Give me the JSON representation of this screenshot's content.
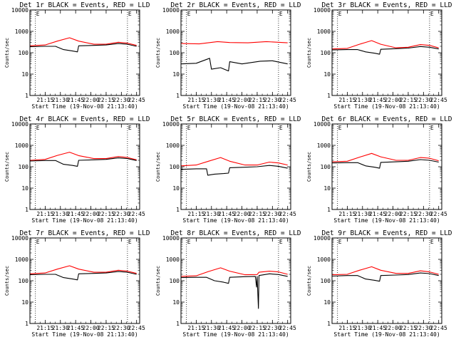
{
  "chart_data": [
    {
      "type": "line",
      "title": "Det 1r BLACK = Events, RED = LLD",
      "xlabel": "Start Time (19-Nov-08 21:13:40)",
      "ylabel": "Counts/sec",
      "x_tick_labels": [
        "21:15",
        "21:30",
        "21:45",
        "22:00",
        "22:15",
        "22:30",
        "22:45"
      ],
      "y_tick_labels": [
        "1",
        "10",
        "100",
        "1000",
        "10000"
      ],
      "x_unit": "minutes",
      "xlim": [
        21.0,
        22.8
      ],
      "ylim": [
        1,
        10000
      ],
      "yscale": "log",
      "markers": [
        {
          "label": "E",
          "x": 21.09
        },
        {
          "label": "E",
          "x": 22.6
        }
      ],
      "series": [
        {
          "color": "#ff0000",
          "x": [
            21.0,
            21.25,
            21.45,
            21.65,
            21.8,
            22.05,
            22.25,
            22.45,
            22.6,
            22.75
          ],
          "y": [
            210,
            230,
            350,
            500,
            350,
            250,
            250,
            310,
            280,
            220
          ]
        },
        {
          "color": "#000000",
          "x": [
            21.0,
            21.25,
            21.42,
            21.55,
            21.7,
            21.78,
            21.8,
            22.05,
            22.25,
            22.45,
            22.6,
            22.75
          ],
          "y": [
            190,
            200,
            200,
            140,
            120,
            110,
            210,
            220,
            230,
            270,
            250,
            200
          ]
        }
      ]
    },
    {
      "type": "line",
      "title": "Det 2r BLACK = Events, RED = LLD",
      "xlabel": "",
      "ylabel": "Counts/sec",
      "x_tick_labels": [
        "21:15",
        "21:30",
        "21:45",
        "22:00",
        "22:15",
        "22:30",
        "22:45"
      ],
      "y_tick_labels": [
        "1",
        "10",
        "100",
        "1000",
        "10000"
      ],
      "x_unit": "minutes",
      "xlim": [
        21.0,
        22.8
      ],
      "ylim": [
        1,
        10000
      ],
      "yscale": "log",
      "markers": [
        {
          "label": "E",
          "x": 21.09
        },
        {
          "label": "E",
          "x": 22.6
        }
      ],
      "series": [
        {
          "color": "#ff0000",
          "x": [
            21.0,
            21.3,
            21.6,
            21.8,
            22.1,
            22.4,
            22.75
          ],
          "y": [
            270,
            260,
            330,
            300,
            290,
            330,
            290
          ]
        },
        {
          "color": "#000000",
          "x": [
            21.0,
            21.25,
            21.47,
            21.5,
            21.65,
            21.78,
            21.8,
            22.0,
            22.3,
            22.5,
            22.75
          ],
          "y": [
            30,
            32,
            55,
            17,
            20,
            14,
            38,
            30,
            40,
            42,
            30
          ]
        }
      ]
    },
    {
      "type": "line",
      "title": "Det 3r BLACK = Events, RED = LLD",
      "xlabel": "",
      "ylabel": "Counts/sec",
      "x_tick_labels": [
        "21:15",
        "21:30",
        "21:45",
        "22:00",
        "22:15",
        "22:30",
        "22:45"
      ],
      "y_tick_labels": [
        "1",
        "10",
        "100",
        "1000",
        "10000"
      ],
      "x_unit": "minutes",
      "xlim": [
        21.0,
        22.8
      ],
      "ylim": [
        1,
        10000
      ],
      "yscale": "log",
      "markers": [
        {
          "label": "E",
          "x": 21.09
        },
        {
          "label": "E",
          "x": 22.6
        }
      ],
      "series": [
        {
          "color": "#ff0000",
          "x": [
            21.0,
            21.25,
            21.45,
            21.65,
            21.8,
            22.05,
            22.25,
            22.45,
            22.6,
            22.75
          ],
          "y": [
            150,
            160,
            250,
            370,
            250,
            170,
            180,
            240,
            220,
            170
          ]
        },
        {
          "color": "#000000",
          "x": [
            21.0,
            21.25,
            21.42,
            21.55,
            21.7,
            21.78,
            21.8,
            22.05,
            22.25,
            22.45,
            22.6,
            22.75
          ],
          "y": [
            135,
            140,
            140,
            110,
            95,
            85,
            145,
            155,
            165,
            195,
            180,
            150
          ]
        }
      ]
    },
    {
      "type": "line",
      "title": "Det 4r BLACK = Events, RED = LLD",
      "xlabel": "",
      "ylabel": "Counts/sec",
      "x_tick_labels": [
        "21:15",
        "21:30",
        "21:45",
        "22:00",
        "22:15",
        "22:30",
        "22:45"
      ],
      "y_tick_labels": [
        "1",
        "10",
        "100",
        "1000",
        "10000"
      ],
      "x_unit": "minutes",
      "xlim": [
        21.0,
        22.8
      ],
      "ylim": [
        1,
        10000
      ],
      "yscale": "log",
      "markers": [
        {
          "label": "E",
          "x": 21.09
        },
        {
          "label": "E",
          "x": 22.6
        }
      ],
      "series": [
        {
          "color": "#ff0000",
          "x": [
            21.0,
            21.25,
            21.45,
            21.65,
            21.8,
            22.05,
            22.25,
            22.45,
            22.6,
            22.75
          ],
          "y": [
            200,
            220,
            340,
            480,
            330,
            240,
            240,
            300,
            270,
            210
          ]
        },
        {
          "color": "#000000",
          "x": [
            21.0,
            21.25,
            21.42,
            21.55,
            21.7,
            21.78,
            21.8,
            22.05,
            22.25,
            22.45,
            22.6,
            22.75
          ],
          "y": [
            185,
            195,
            195,
            130,
            115,
            105,
            200,
            210,
            220,
            260,
            240,
            195
          ]
        }
      ]
    },
    {
      "type": "line",
      "title": "Det 5r BLACK = Events, RED = LLD",
      "xlabel": "",
      "ylabel": "Counts/sec",
      "x_tick_labels": [
        "21:15",
        "21:30",
        "21:45",
        "22:00",
        "22:15",
        "22:30",
        "22:45"
      ],
      "y_tick_labels": [
        "1",
        "10",
        "100",
        "1000",
        "10000"
      ],
      "x_unit": "minutes",
      "xlim": [
        21.0,
        22.8
      ],
      "ylim": [
        1,
        10000
      ],
      "yscale": "log",
      "markers": [
        {
          "label": "E",
          "x": 21.09
        },
        {
          "label": "E",
          "x": 22.6
        }
      ],
      "series": [
        {
          "color": "#ff0000",
          "x": [
            21.0,
            21.25,
            21.45,
            21.65,
            21.8,
            22.05,
            22.25,
            22.45,
            22.6,
            22.75
          ],
          "y": [
            110,
            120,
            180,
            270,
            180,
            120,
            120,
            165,
            150,
            120
          ]
        },
        {
          "color": "#000000",
          "x": [
            21.0,
            21.25,
            21.42,
            21.44,
            21.55,
            21.7,
            21.78,
            21.8,
            22.05,
            22.25,
            22.45,
            22.6,
            22.75
          ],
          "y": [
            75,
            80,
            80,
            40,
            45,
            48,
            50,
            90,
            95,
            100,
            115,
            105,
            85
          ]
        }
      ]
    },
    {
      "type": "line",
      "title": "Det 6r BLACK = Events, RED = LLD",
      "xlabel": "",
      "ylabel": "Counts/sec",
      "x_tick_labels": [
        "21:15",
        "21:30",
        "21:45",
        "22:00",
        "22:15",
        "22:30",
        "22:45"
      ],
      "y_tick_labels": [
        "1",
        "10",
        "100",
        "1000",
        "10000"
      ],
      "x_unit": "minutes",
      "xlim": [
        21.0,
        22.8
      ],
      "ylim": [
        1,
        10000
      ],
      "yscale": "log",
      "markers": [
        {
          "label": "E",
          "x": 21.09
        },
        {
          "label": "E",
          "x": 22.6
        }
      ],
      "series": [
        {
          "color": "#ff0000",
          "x": [
            21.0,
            21.25,
            21.45,
            21.65,
            21.8,
            22.05,
            22.25,
            22.45,
            22.6,
            22.75
          ],
          "y": [
            170,
            180,
            280,
            420,
            290,
            200,
            200,
            270,
            250,
            190
          ]
        },
        {
          "color": "#000000",
          "x": [
            21.0,
            21.25,
            21.42,
            21.55,
            21.7,
            21.78,
            21.8,
            22.05,
            22.25,
            22.45,
            22.6,
            22.75
          ],
          "y": [
            150,
            155,
            155,
            110,
            95,
            85,
            160,
            170,
            180,
            215,
            200,
            165
          ]
        }
      ]
    },
    {
      "type": "line",
      "title": "Det 7r BLACK = Events, RED = LLD",
      "xlabel": "",
      "ylabel": "Counts/sec",
      "x_tick_labels": [
        "21:15",
        "21:30",
        "21:45",
        "22:00",
        "22:15",
        "22:30",
        "22:45"
      ],
      "y_tick_labels": [
        "1",
        "10",
        "100",
        "1000",
        "10000"
      ],
      "x_unit": "minutes",
      "xlim": [
        21.0,
        22.8
      ],
      "ylim": [
        1,
        10000
      ],
      "yscale": "log",
      "markers": [
        {
          "label": "E",
          "x": 21.09
        },
        {
          "label": "E",
          "x": 22.6
        }
      ],
      "series": [
        {
          "color": "#ff0000",
          "x": [
            21.0,
            21.25,
            21.45,
            21.65,
            21.8,
            22.05,
            22.25,
            22.45,
            22.6,
            22.75
          ],
          "y": [
            210,
            230,
            350,
            500,
            350,
            250,
            250,
            310,
            280,
            220
          ]
        },
        {
          "color": "#000000",
          "x": [
            21.0,
            21.25,
            21.42,
            21.55,
            21.7,
            21.78,
            21.8,
            22.05,
            22.25,
            22.45,
            22.6,
            22.75
          ],
          "y": [
            190,
            200,
            200,
            140,
            120,
            110,
            210,
            220,
            230,
            270,
            250,
            200
          ]
        }
      ]
    },
    {
      "type": "line",
      "title": "Det 8r BLACK = Events, RED = LLD",
      "xlabel": "",
      "ylabel": "Counts/sec",
      "x_tick_labels": [
        "21:15",
        "21:30",
        "21:45",
        "22:00",
        "22:15",
        "22:30",
        "22:45"
      ],
      "y_tick_labels": [
        "1",
        "10",
        "100",
        "1000",
        "10000"
      ],
      "x_unit": "minutes",
      "xlim": [
        21.0,
        22.8
      ],
      "ylim": [
        1,
        10000
      ],
      "yscale": "log",
      "markers": [
        {
          "label": "E",
          "x": 21.09
        },
        {
          "label": "E",
          "x": 22.6
        }
      ],
      "series": [
        {
          "color": "#ff0000",
          "x": [
            21.0,
            21.25,
            21.45,
            21.65,
            21.8,
            22.05,
            22.25,
            22.28,
            22.45,
            22.6,
            22.75
          ],
          "y": [
            160,
            170,
            270,
            400,
            280,
            190,
            195,
            250,
            280,
            260,
            200
          ]
        },
        {
          "color": "#000000",
          "x": [
            21.0,
            21.25,
            21.42,
            21.55,
            21.7,
            21.78,
            21.8,
            22.05,
            22.22,
            22.24,
            22.25,
            22.27,
            22.28,
            22.45,
            22.6,
            22.75
          ],
          "y": [
            140,
            145,
            145,
            100,
            85,
            75,
            145,
            155,
            160,
            50,
            160,
            5,
            175,
            210,
            195,
            160
          ]
        }
      ]
    },
    {
      "type": "line",
      "title": "Det 9r BLACK = Events, RED = LLD",
      "xlabel": "",
      "ylabel": "Counts/sec",
      "x_tick_labels": [
        "21:15",
        "21:30",
        "21:45",
        "22:00",
        "22:15",
        "22:30",
        "22:45"
      ],
      "y_tick_labels": [
        "1",
        "10",
        "100",
        "1000",
        "10000"
      ],
      "x_unit": "minutes",
      "xlim": [
        21.0,
        22.8
      ],
      "ylim": [
        1,
        10000
      ],
      "yscale": "log",
      "markers": [
        {
          "label": "E",
          "x": 21.09
        },
        {
          "label": "E",
          "x": 22.6
        }
      ],
      "series": [
        {
          "color": "#ff0000",
          "x": [
            21.0,
            21.25,
            21.45,
            21.65,
            21.8,
            22.05,
            22.25,
            22.45,
            22.6,
            22.75
          ],
          "y": [
            190,
            200,
            310,
            450,
            310,
            220,
            220,
            290,
            260,
            200
          ]
        },
        {
          "color": "#000000",
          "x": [
            21.0,
            21.25,
            21.42,
            21.55,
            21.7,
            21.78,
            21.8,
            22.05,
            22.25,
            22.45,
            22.6,
            22.75
          ],
          "y": [
            165,
            175,
            175,
            120,
            105,
            95,
            175,
            185,
            195,
            230,
            215,
            175
          ]
        }
      ]
    }
  ]
}
